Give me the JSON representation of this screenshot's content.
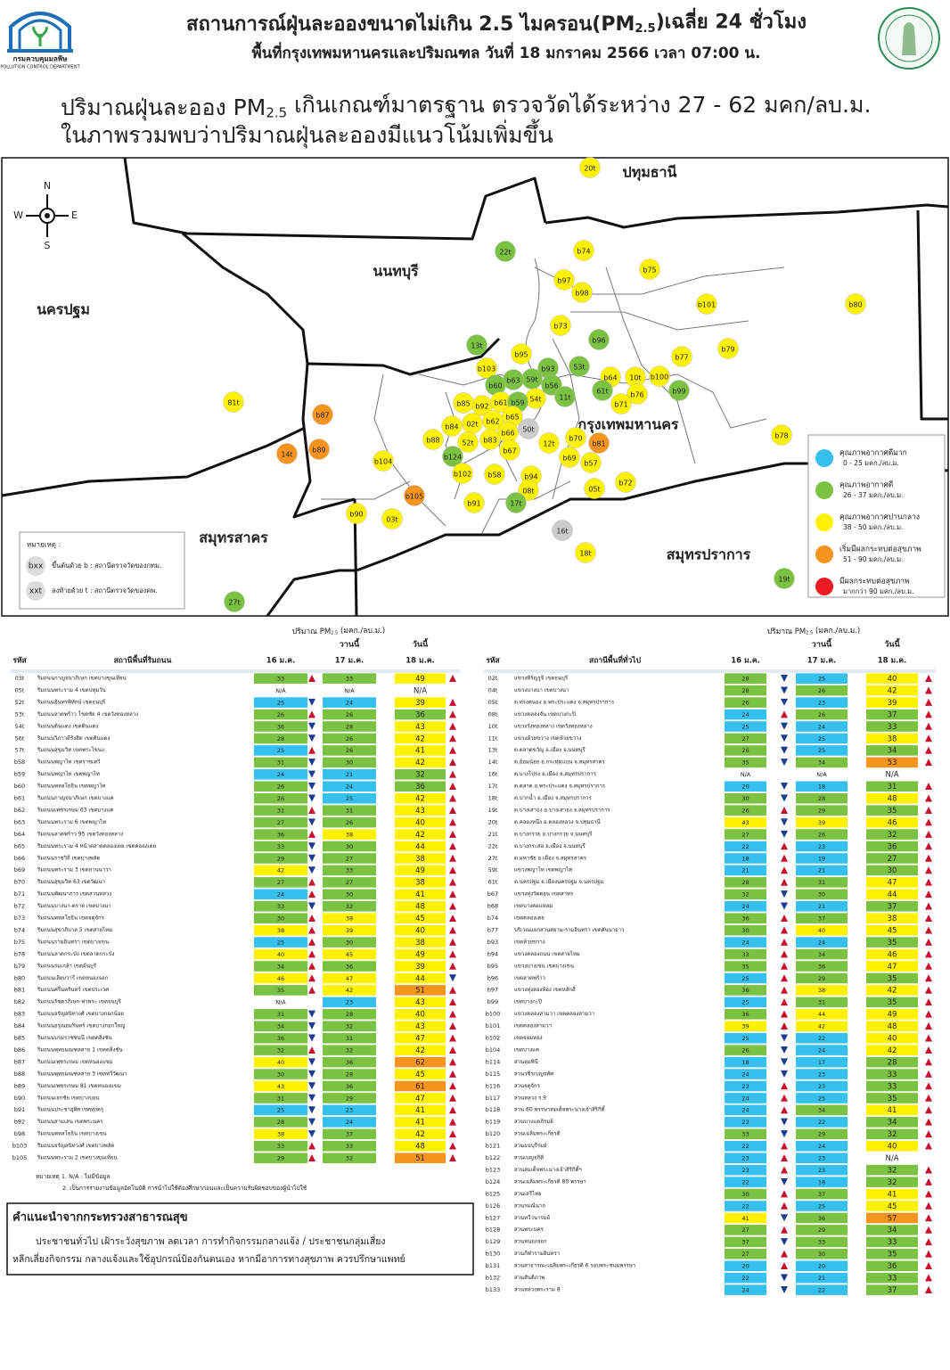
{
  "header": {
    "logo_name": "กรมควบคุมมลพิษ",
    "logo_en": "POLLUTION CONTROL DEPARTMENT",
    "title_pre": "สถานการณ์ฝุ่นละอองขนาดไม่เกิน 2.5 ไมครอน(PM",
    "title_sub": "2.5",
    "title_post": ")เฉลี่ย 24 ชั่วโมง",
    "subtitle": "พื้นที่กรุงเทพมหานครและปริมณฑล วันที่ 18 มกราคม 2566 เวลา 07:00 น."
  },
  "headline": {
    "line1_pre": "ปริมาณฝุ่นละออง PM",
    "line1_sub": "2.5",
    "line1_post": " เกินเกณฑ์มาตรฐาน ตรวจวัดได้ระหว่าง 27 - 62 มคก/ลบ.ม.",
    "line2": "ในภาพรวมพบว่าปริมาณฝุ่นละอองมีแนวโน้มเพิ่มขึ้น"
  },
  "map": {
    "compass": [
      "N",
      "E",
      "S",
      "W"
    ],
    "provinces": [
      "ปทุมธานี",
      "นนทบุรี",
      "นครปฐม",
      "กรุงเทพมหานคร",
      "สมุทรสาคร",
      "สมุทรปราการ"
    ],
    "stations": [
      {
        "label": "20t",
        "level": 2
      },
      {
        "label": "22t",
        "level": 1
      },
      {
        "label": "b74",
        "level": 2
      },
      {
        "label": "b75",
        "level": 2
      },
      {
        "label": "b97",
        "level": 2
      },
      {
        "label": "b98",
        "level": 2
      },
      {
        "label": "b101",
        "level": 2
      },
      {
        "label": "b80",
        "level": 2
      },
      {
        "label": "b73",
        "level": 2
      },
      {
        "label": "13t",
        "level": 1
      },
      {
        "label": "b96",
        "level": 1
      },
      {
        "label": "b79",
        "level": 2
      },
      {
        "label": "b95",
        "level": 2
      },
      {
        "label": "b77",
        "level": 2
      },
      {
        "label": "b93",
        "level": 1
      },
      {
        "label": "53t",
        "level": 1
      },
      {
        "label": "b103",
        "level": 2
      },
      {
        "label": "59t",
        "level": 1
      },
      {
        "label": "b63",
        "level": 1
      },
      {
        "label": "b64",
        "level": 2
      },
      {
        "label": "10t",
        "level": 2
      },
      {
        "label": "b100",
        "level": 2
      },
      {
        "label": "b56",
        "level": 1
      },
      {
        "label": "b60",
        "level": 1
      },
      {
        "label": "b99",
        "level": 1
      },
      {
        "label": "61t",
        "level": 1
      },
      {
        "label": "54t",
        "level": 2
      },
      {
        "label": "11t",
        "level": 1
      },
      {
        "label": "b76",
        "level": 2
      },
      {
        "label": "b92",
        "level": 2
      },
      {
        "label": "b61",
        "level": 2
      },
      {
        "label": "b59",
        "level": 1
      },
      {
        "label": "b85",
        "level": 2
      },
      {
        "label": "b71",
        "level": 2
      },
      {
        "label": "81t",
        "level": 2
      },
      {
        "label": "b65",
        "level": 2
      },
      {
        "label": "b87",
        "level": 3
      },
      {
        "label": "b84",
        "level": 2
      },
      {
        "label": "02t",
        "level": 2
      },
      {
        "label": "b62",
        "level": 2
      },
      {
        "label": "b66",
        "level": 2
      },
      {
        "label": "50t",
        "level": null
      },
      {
        "label": "b78",
        "level": 2
      },
      {
        "label": "b88",
        "level": 2
      },
      {
        "label": "52t",
        "level": 2
      },
      {
        "label": "b83",
        "level": 2
      },
      {
        "label": "b70",
        "level": 2
      },
      {
        "label": "b81",
        "level": 3
      },
      {
        "label": "12t",
        "level": 2
      },
      {
        "label": "14t",
        "level": 3
      },
      {
        "label": "b89",
        "level": 3
      },
      {
        "label": "b67",
        "level": 2
      },
      {
        "label": "b124",
        "level": 1
      },
      {
        "label": "b69",
        "level": 2
      },
      {
        "label": "b57",
        "level": 2
      },
      {
        "label": "b104",
        "level": 2
      },
      {
        "label": "b102",
        "level": 2
      },
      {
        "label": "b58",
        "level": 2
      },
      {
        "label": "b94",
        "level": 2
      },
      {
        "label": "b72",
        "level": 2
      },
      {
        "label": "05t",
        "level": 2
      },
      {
        "label": "08t",
        "level": 2
      },
      {
        "label": "b105",
        "level": 3
      },
      {
        "label": "b91",
        "level": 2
      },
      {
        "label": "17t",
        "level": 1
      },
      {
        "label": "b90",
        "level": 2
      },
      {
        "label": "03t",
        "level": 2
      },
      {
        "label": "16t",
        "level": null
      },
      {
        "label": "18t",
        "level": 2
      },
      {
        "label": "19t",
        "level": 1
      },
      {
        "label": "27t",
        "level": 1
      }
    ],
    "legend": [
      {
        "label": "คุณภาพอากาศดีมาก",
        "range": "0 - 25 มคก./ลบ.ม.",
        "color": "#35c0ee",
        "max": 25
      },
      {
        "label": "คุณภาพอากาศดี",
        "range": "26 - 37 มคก./ลบ.ม.",
        "color": "#7cc242",
        "max": 37
      },
      {
        "label": "คุณภาพอากาศปานกลาง",
        "range": "38 - 50 มคก./ลบ.ม.",
        "color": "#fff200",
        "max": 50
      },
      {
        "label": "เริ่มมีผลกระทบต่อสุขภาพ",
        "range": "51 - 90 มคก./ลบ.ม.",
        "color": "#f7941d",
        "max": 90
      },
      {
        "label": "มีผลกระทบต่อสุขภาพ",
        "range": "มากกว่า 90 มคก./ลบ.ม.",
        "color": "#ed1c24"
      }
    ],
    "na_color": "#cccccc",
    "note": {
      "title": "หมายเหตุ :",
      "b_code": "bxx",
      "b_text": "ขึ้นต้นด้วย b : สถานีตรวจวัดของกทม.",
      "t_code": "xxt",
      "t_text": "ลงท้ายด้วย t : สถานีตรวจวัดของคพ."
    }
  },
  "tables": [
    {
      "unit_pre": "ปริมาณ PM",
      "unit_sub": "2.5",
      "unit_post": " (มคก./ลบ.ม.)",
      "yesterday": "วานนี้",
      "today": "วันนี้",
      "columns": [
        "รหัส",
        "สถานีพื้นที่ริมถนน",
        "16 ม.ค.",
        "17 ม.ค.",
        "18 ม.ค."
      ],
      "rows": [
        [
          "03t",
          "ริมถนนกาญจนาภิเษก เขตบางขุนเทียน",
          33,
          33,
          49
        ],
        [
          "05t",
          "ริมถนนพระราม 4 เขตปทุมวัน",
          "N/A",
          "N/A",
          "N/A"
        ],
        [
          "52t",
          "ริมถนนอินทรพิทักษ์ เขตธนบุรี",
          25,
          24,
          39
        ],
        [
          "53t",
          "ริมถนนลาดพร้าว โชคชัย 4 เขตวังทองหลาง",
          26,
          26,
          36
        ],
        [
          "54t",
          "ริมถนนดินแดง เขตดินแดง",
          36,
          28,
          43
        ],
        [
          "56t",
          "ริมถนนวิภาวดีรังสิต เขตดินแดง",
          28,
          26,
          42
        ],
        [
          "57t",
          "ริมถนนสุขุมวิท เขตพระโขนง",
          25,
          26,
          41
        ],
        [
          "b58",
          "ริมถนนพญาไท เขตราชเทวี",
          31,
          30,
          42
        ],
        [
          "b59",
          "ริมถนนพญาไท เขตพญาไท",
          24,
          21,
          32
        ],
        [
          "b60",
          "ริมถนนพหลโยธิน เขตพญาไท",
          26,
          24,
          36
        ],
        [
          "b61",
          "ริมถนนกาญจนาภิเษก เขตบางแค",
          26,
          25,
          42
        ],
        [
          "b62",
          "ริมถนนเพชรเกษม 63 เขตบางแค",
          31,
          31,
          43
        ],
        [
          "b63",
          "ริมถนนพระราม 6 เขตพญาไท",
          27,
          26,
          40
        ],
        [
          "b64",
          "ริมถนนลาดพร้าว 95 เขตวังทองหลาง",
          36,
          38,
          42
        ],
        [
          "b65",
          "ริมถนนพระราม 4 หน้าตลาดคลองเตย เขตคลองเตย",
          33,
          30,
          44
        ],
        [
          "b66",
          "ริมถนนราชวิถี เขตบางพลัด",
          29,
          27,
          38
        ],
        [
          "b69",
          "ริมถนนพระราม 3 เขตยานนาวา",
          42,
          33,
          49
        ],
        [
          "b70",
          "ริมถนนสุขุมวิท 63 เขตวัฒนา",
          27,
          27,
          38
        ],
        [
          "b71",
          "ริมถนนพัฒนาการ เขตสวนหลวง",
          24,
          30,
          41
        ],
        [
          "b72",
          "ริมถนนบางนา-ตราด เขตบางนา",
          33,
          32,
          48
        ],
        [
          "b73",
          "ริมถนนพหลโยธิน เขตจตุจักร",
          30,
          38,
          45
        ],
        [
          "b74",
          "ริมถนนสุขาภิบาล 5 เขตสายไหม",
          38,
          39,
          40
        ],
        [
          "b75",
          "ริมถนนรามอินทรา เขตบางเขน",
          25,
          30,
          38
        ],
        [
          "b78",
          "ริมถนนลาดกระบัง เขตลาดกระบัง",
          40,
          45,
          49
        ],
        [
          "b79",
          "ริมถนนร่มเกล้า เขตมีนบุรี",
          34,
          36,
          39
        ],
        [
          "b80",
          "ริมถนนเลียบวารี เขตหนองจอก",
          46,
          47,
          44
        ],
        [
          "b81",
          "ริมถนนศรีนครินทร์ เขตประเวศ",
          35,
          42,
          51
        ],
        [
          "b82",
          "ริมถนนรัชดาภิเษก-ท่าพระ เขตธนบุรี",
          "N/A",
          23,
          43
        ],
        [
          "b83",
          "ริมถนนจรัญสนิทวงศ์ เขตบางกอกน้อย",
          31,
          28,
          40
        ],
        [
          "b84",
          "ริมถนนอรุณอมรินทร์ เขตบางกอกใหญ่",
          34,
          32,
          43
        ],
        [
          "b85",
          "ริมถนนบรมราชชนนี เขตตลิ่งชัน",
          36,
          31,
          47
        ],
        [
          "b86",
          "ริมถนนพุทธมณฑลสาย 1 เขตตลิ่งชัน",
          32,
          32,
          42
        ],
        [
          "b87",
          "ริมถนนเพชรเกษม เขตหนองแขม",
          40,
          36,
          62
        ],
        [
          "b88",
          "ริมถนนพุทธมณฑลสาย 3 เขตทวีวัฒนา",
          30,
          28,
          45
        ],
        [
          "b89",
          "ริมถนนเพชรเกษม 81 เขตหนองแขม",
          43,
          36,
          61
        ],
        [
          "b90",
          "ริมถนนเอกชัย เขตบางบอน",
          31,
          29,
          47
        ],
        [
          "b91",
          "ริมถนนประชาอุทิศ เขตทุ่งครุ",
          25,
          23,
          41
        ],
        [
          "b92",
          "ริมถนนสามเสน เขตพระนคร",
          28,
          24,
          41
        ],
        [
          "b98",
          "ริมถนนพหลโยธิน เขตบางเขน",
          38,
          37,
          42
        ],
        [
          "b103",
          "ริมถนนจรัญสนิทวงศ์ เขตบางพลัด",
          33,
          33,
          48
        ],
        [
          "b105",
          "ริมถนนพระราม 2 เขตบางขุนเทียน",
          29,
          32,
          51
        ]
      ],
      "notes": [
        "หมายเหตุ 1. N/A : ไม่มีข้อมูล",
        "2. เป็นการรายงานข้อมูลอัตโนมัติ การนำไปใช้ต้องศึกษาก่อนและเป็นความรับผิดชอบของผู้นำไปใช้"
      ]
    },
    {
      "unit_pre": "ปริมาณ PM",
      "unit_sub": "2.5",
      "unit_post": " (มคก./ลบ.ม.)",
      "yesterday": "วานนี้",
      "today": "วันนี้",
      "columns": [
        "รหัส",
        "สถานีพื้นที่ทั่วไป",
        "16 ม.ค.",
        "17 ม.ค.",
        "18 ม.ค."
      ],
      "rows": [
        [
          "02t",
          "แขวงหิรัญรูจี เขตธนบุรี",
          28,
          25,
          40
        ],
        [
          "04t",
          "แขวงบางนา เขตบางนา",
          28,
          26,
          42
        ],
        [
          "05t",
          "ต.ทรงคนอง อ.พระประแดง จ.สมุทรปราการ",
          26,
          23,
          39
        ],
        [
          "08t",
          "แขวงคลองจั่น เขตบางกะปิ",
          24,
          26,
          37
        ],
        [
          "10t",
          "แขวงวังทองหลาง เขตวังทองหลาง",
          25,
          24,
          33
        ],
        [
          "11t",
          "แขวงห้วยขวาง เขตห้วยขวาง",
          27,
          25,
          38
        ],
        [
          "13t",
          "ต.ตลาดขวัญ อ.เมือง จ.นนทบุรี",
          26,
          25,
          34
        ],
        [
          "14t",
          "ต.อ้อมน้อย อ.กระทุ่มแบน จ.สมุทรสาคร",
          35,
          34,
          53
        ],
        [
          "16t",
          "ต.บางโปรง อ.เมือง จ.สมุทรปราการ",
          "N/A",
          "N/A",
          "N/A"
        ],
        [
          "17t",
          "ต.ตลาด อ.พระประแดง จ.สมุทรปราการ",
          20,
          18,
          31
        ],
        [
          "18t",
          "ต.ปากน้ำ อ.เมือง จ.สมุทรปราการ",
          30,
          28,
          48
        ],
        [
          "19t",
          "ต.บางเสาธง อ.บางเสาธง จ.สมุทรปราการ",
          26,
          29,
          35
        ],
        [
          "20t",
          "ต.คลองหนึ่ง อ.คลองหลวง จ.ปทุมธานี",
          43,
          39,
          46
        ],
        [
          "21t",
          "ต.บางกรวย อ.บางกรวย จ.นนทบุรี",
          27,
          26,
          32
        ],
        [
          "22t",
          "ต.บางกระสอ อ.เมือง จ.นนทบุรี",
          22,
          23,
          36
        ],
        [
          "27t",
          "ต.มหาชัย อ.เมือง จ.สมุทรสาคร",
          18,
          19,
          27
        ],
        [
          "59t",
          "แขวงพญาไท เขตพญาไท",
          21,
          21,
          30
        ],
        [
          "61t",
          "ต.นครปฐม อ.เมืองนครปฐม จ.นครปฐม",
          28,
          31,
          47
        ],
        [
          "b67",
          "แขวงทุ่งวัดดอน เขตสาทร",
          32,
          30,
          44
        ],
        [
          "b68",
          "เขตบางคอแหลม",
          24,
          21,
          37
        ],
        [
          "b74",
          "เขตคลองเตย",
          36,
          37,
          38
        ],
        [
          "b77",
          "บริเวณแยกสวนสยาม-รามอินทรา เขตคันนายาว",
          30,
          40,
          45
        ],
        [
          "b93",
          "เขตห้วยขวาง",
          24,
          24,
          35
        ],
        [
          "b94",
          "แขวงคลองถนน เขตสายไหม",
          33,
          34,
          46
        ],
        [
          "b95",
          "แขวงบางเขน เขตบางเขน",
          35,
          36,
          47
        ],
        [
          "b96",
          "เขตลาดพร้าว",
          25,
          29,
          35
        ],
        [
          "b97",
          "แขวงทุ่งสองห้อง เขตหลักสี่",
          36,
          38,
          42
        ],
        [
          "b99",
          "เขตบางกะปิ",
          25,
          31,
          35
        ],
        [
          "b100",
          "แขวงคลองสามวา เขตคลองสามวา",
          36,
          44,
          49
        ],
        [
          "b101",
          "เขตคลองสามวา",
          39,
          42,
          48
        ],
        [
          "b102",
          "เขตจอมทอง",
          25,
          22,
          40
        ],
        [
          "b104",
          "เขตบางแค",
          26,
          24,
          42
        ],
        [
          "b114",
          "สวนลุมพินี",
          18,
          17,
          28
        ],
        [
          "b115",
          "สวนวชิรเบญจทัศ",
          24,
          23,
          33
        ],
        [
          "b116",
          "สวนจตุจักร",
          23,
          23,
          33
        ],
        [
          "b117",
          "สวนหลวง ร.9",
          24,
          25,
          35
        ],
        [
          "b118",
          "สวน 60 พรรษาสมเด็จพระนางเจ้าสิริกิติ์",
          24,
          34,
          41
        ],
        [
          "b119",
          "สวนบางแคภิรมย์",
          23,
          22,
          34
        ],
        [
          "b120",
          "สวนเฉลิมพระเกียรติ",
          33,
          29,
          32
        ],
        [
          "b121",
          "สวนธนบุรีรมย์",
          22,
          24,
          40
        ],
        [
          "b122",
          "สวนเบญจกิติ",
          23,
          23,
          "N/A"
        ],
        [
          "b123",
          "สวนสมเด็จพระนางเจ้าสิริกิติ์ฯ",
          23,
          23,
          32
        ],
        [
          "b124",
          "สวนเฉลิมพระเกียรติ 80 พรรษา",
          22,
          18,
          32
        ],
        [
          "b125",
          "สวนเสรีไทย",
          30,
          37,
          41
        ],
        [
          "b126",
          "สวนรมณีนาถ",
          22,
          25,
          45
        ],
        [
          "b127",
          "สวนทวีวนารมย์",
          41,
          36,
          57
        ],
        [
          "b128",
          "สวนพระนคร",
          27,
          29,
          34
        ],
        [
          "b129",
          "สวนหนองจอก",
          37,
          33,
          33
        ],
        [
          "b130",
          "สวนกีฬารามอินทรา",
          27,
          30,
          35
        ],
        [
          "b131",
          "สวนสาธารณะเฉลิมพระเกียรติ 6 รอบพระชนมพรรษา",
          20,
          20,
          36
        ],
        [
          "b132",
          "สวนสันติภาพ",
          22,
          21,
          33
        ],
        [
          "b133",
          "สวนหลวงพระราม 8",
          24,
          22,
          37
        ]
      ]
    }
  ],
  "advice": {
    "title": "คำแนะนำจากกระทรวงสาธารณสุข",
    "lines": [
      "ประชาชนทั่วไป เฝ้าระวังสุขภาพ ลดเวลา การทำกิจกรรมกลางแจ้ง / ประชาชนกลุ่มเสี่ยง",
      "หลีกเลี่ยงกิจกรรม กลางแจ้งและใช้อุปกรณ์ป้องกันตนเอง หากมีอาการทางสุขภาพ ควรปรึกษาแพทย์"
    ]
  }
}
